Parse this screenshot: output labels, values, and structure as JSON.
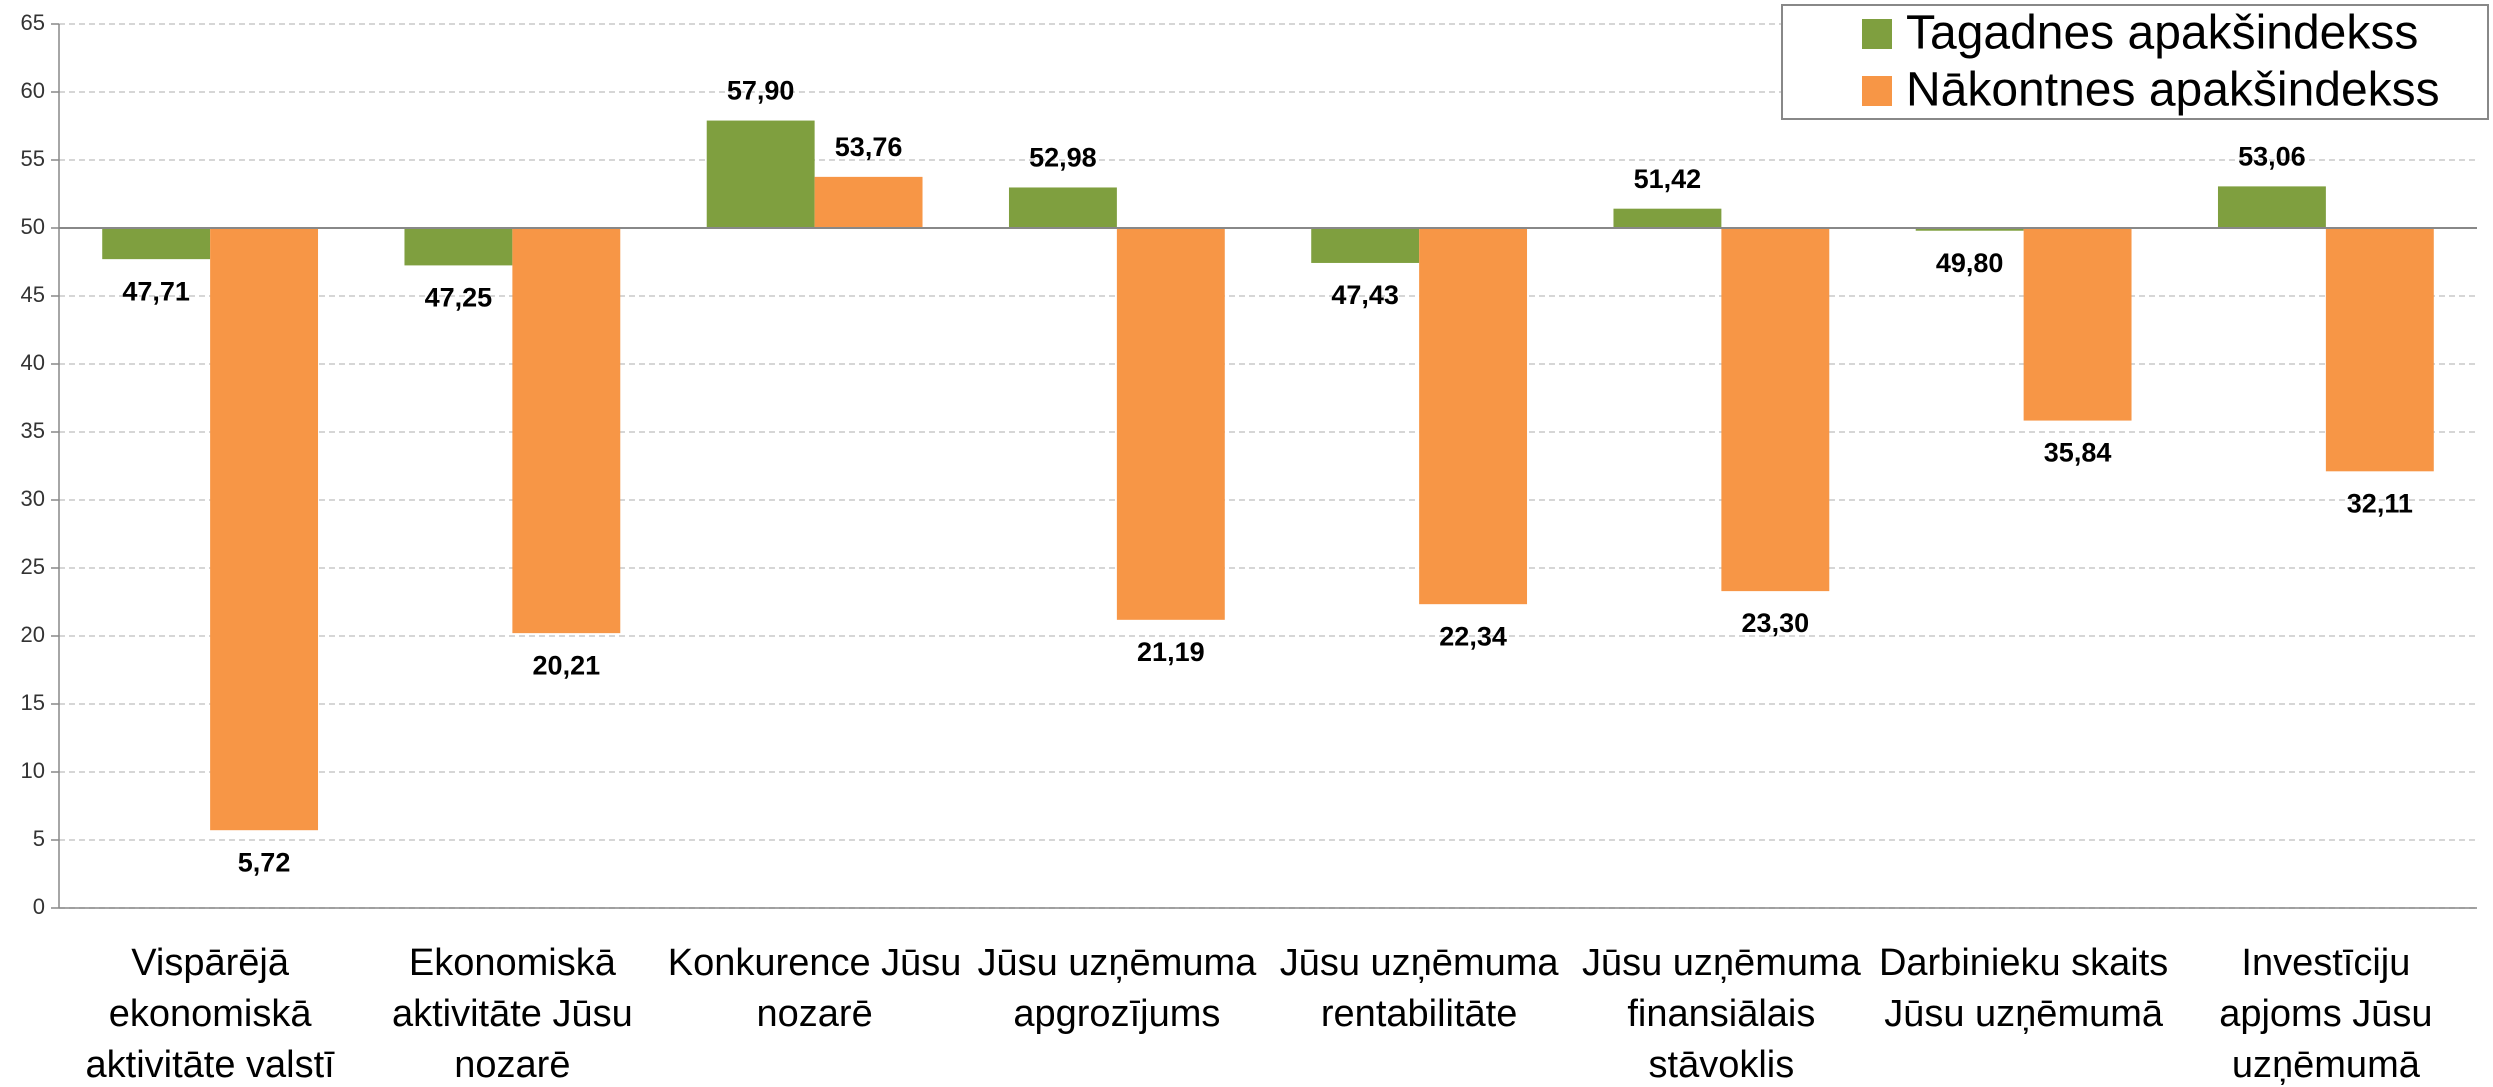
{
  "chart_data": {
    "type": "bar",
    "categories": [
      [
        "Vispārējā",
        "ekonomiskā",
        "aktivitāte valstī"
      ],
      [
        "Ekonomiskā",
        "aktivitāte Jūsu",
        "nozarē"
      ],
      [
        "Konkurence Jūsu",
        "nozarē"
      ],
      [
        "Jūsu uzņēmuma",
        "apgrozījums"
      ],
      [
        "Jūsu uzņēmuma",
        "rentabilitāte"
      ],
      [
        "Jūsu uzņēmuma",
        "finansiālais",
        "stāvoklis"
      ],
      [
        "Darbinieku skaits",
        "Jūsu uzņēmumā"
      ],
      [
        "Investīciju",
        "apjoms Jūsu",
        "uzņēmumā"
      ]
    ],
    "series": [
      {
        "name": "Tagadnes apakšindekss",
        "color": "#7f9f3f",
        "values": [
          47.71,
          47.25,
          57.9,
          52.98,
          47.43,
          51.42,
          49.8,
          53.06
        ],
        "value_labels": [
          "47,71",
          "47,25",
          "57,90",
          "52,98",
          "47,43",
          "51,42",
          "49,80",
          "53,06"
        ]
      },
      {
        "name": "Nākontnes apakšindekss",
        "color": "#f79646",
        "values": [
          5.72,
          20.21,
          53.76,
          21.19,
          22.34,
          23.3,
          35.84,
          32.11
        ],
        "value_labels": [
          "5,72",
          "20,21",
          "53,76",
          "21,19",
          "22,34",
          "23,30",
          "35,84",
          "32,11"
        ]
      }
    ],
    "baseline": 50,
    "ylim": [
      0,
      65
    ],
    "yticks": [
      0,
      5,
      10,
      15,
      20,
      25,
      30,
      35,
      40,
      45,
      50,
      55,
      60,
      65
    ],
    "grid": true,
    "legend": "top-right"
  }
}
